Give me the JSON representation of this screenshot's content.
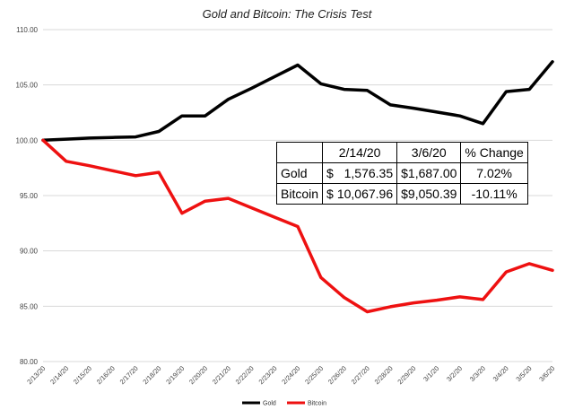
{
  "chart_data": {
    "type": "line",
    "title": "Gold and Bitcoin: The Crisis Test",
    "xlabel": "",
    "ylabel": "",
    "ylim": [
      80,
      110
    ],
    "yticks": [
      "80.00",
      "85.00",
      "90.00",
      "95.00",
      "100.00",
      "105.00",
      "110.00"
    ],
    "grid": true,
    "legend_position": "bottom",
    "x": [
      "2/13/20",
      "2/14/20",
      "2/15/20",
      "2/16/20",
      "2/17/20",
      "2/18/20",
      "2/19/20",
      "2/20/20",
      "2/21/20",
      "2/22/20",
      "2/23/20",
      "2/24/20",
      "2/25/20",
      "2/26/20",
      "2/27/20",
      "2/28/20",
      "2/29/20",
      "3/1/20",
      "3/2/20",
      "3/3/20",
      "3/4/20",
      "3/5/20",
      "3/6/20"
    ],
    "series": [
      {
        "name": "Gold",
        "color": "#000000",
        "values": [
          100.0,
          100.1,
          100.2,
          100.25,
          100.3,
          100.8,
          102.2,
          102.2,
          103.7,
          104.7,
          105.75,
          106.8,
          105.1,
          104.6,
          104.5,
          103.2,
          102.9,
          102.55,
          102.2,
          101.5,
          104.4,
          104.6,
          107.1
        ]
      },
      {
        "name": "Bitcoin",
        "color": "#ee1111",
        "values": [
          100.0,
          98.1,
          97.7,
          97.25,
          96.8,
          97.1,
          93.4,
          94.5,
          94.75,
          93.9,
          93.05,
          92.2,
          87.6,
          85.8,
          84.5,
          84.95,
          85.3,
          85.55,
          85.85,
          85.6,
          88.1,
          88.85,
          88.25
        ]
      }
    ]
  },
  "table": {
    "headers": [
      "",
      "2/14/20",
      "3/6/20",
      "% Change"
    ],
    "rows": [
      {
        "label": "Gold",
        "start_symbol": "$",
        "start_value": "1,576.35",
        "end_value": "$1,687.00",
        "change": "7.02%"
      },
      {
        "label": "Bitcoin",
        "start_symbol": "$",
        "start_value": "10,067.96",
        "end_value": "$9,050.39",
        "change": "-10.11%"
      }
    ]
  }
}
